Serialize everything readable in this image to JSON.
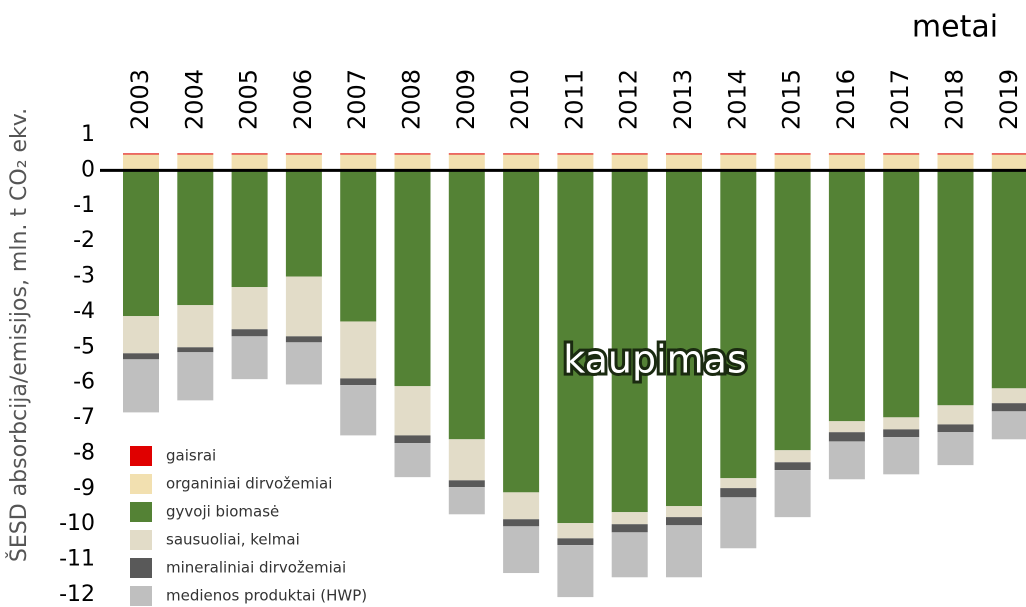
{
  "chart_data": {
    "type": "stacked-bar",
    "title": "metai",
    "y_label": "ŠESD absorbcija/emisijos, mln. t CO₂ ekv.",
    "annotation": "kaupimas",
    "categories": [
      "2003",
      "2004",
      "2005",
      "2006",
      "2007",
      "2008",
      "2009",
      "2010",
      "2011",
      "2012",
      "2013",
      "2014",
      "2015",
      "2016",
      "2017",
      "2018",
      "2019"
    ],
    "series": [
      {
        "name": "gaisrai",
        "color": "#e00000",
        "values": [
          0.03,
          0.03,
          0.03,
          0.03,
          0.03,
          0.03,
          0.03,
          0.03,
          0.03,
          0.03,
          0.03,
          0.03,
          0.03,
          0.03,
          0.03,
          0.03,
          0.03
        ]
      },
      {
        "name": "organiniai dirvožemiai",
        "color": "#f2e0b0",
        "values": [
          0.45,
          0.45,
          0.45,
          0.45,
          0.45,
          0.45,
          0.45,
          0.45,
          0.45,
          0.45,
          0.45,
          0.45,
          0.45,
          0.45,
          0.45,
          0.45,
          0.45
        ]
      },
      {
        "name": "gyvoji biomasė",
        "color": "#548235",
        "values": [
          -4.12,
          -3.81,
          -3.3,
          -3.0,
          -4.27,
          -6.1,
          -7.6,
          -9.1,
          -9.97,
          -9.66,
          -9.49,
          -8.7,
          -7.91,
          -7.09,
          -6.98,
          -6.64,
          -6.16
        ]
      },
      {
        "name": "sausuoliai, kelmai",
        "color": "#e2dcc8",
        "values": [
          -1.05,
          -1.19,
          -1.19,
          -1.69,
          -1.61,
          -1.39,
          -1.16,
          -0.76,
          -0.43,
          -0.34,
          -0.31,
          -0.28,
          -0.34,
          -0.31,
          -0.34,
          -0.54,
          -0.42
        ]
      },
      {
        "name": "mineraliniai dirvožemiai",
        "color": "#595959",
        "values": [
          -0.17,
          -0.14,
          -0.2,
          -0.17,
          -0.19,
          -0.22,
          -0.19,
          -0.2,
          -0.19,
          -0.23,
          -0.23,
          -0.26,
          -0.22,
          -0.26,
          -0.22,
          -0.22,
          -0.23
        ]
      },
      {
        "name": "medienos produktai (HWP)",
        "color": "#bfbfbf",
        "values": [
          -1.5,
          -1.36,
          -1.21,
          -1.19,
          -1.42,
          -0.96,
          -0.77,
          -1.32,
          -1.47,
          -1.27,
          -1.47,
          -1.44,
          -1.33,
          -1.07,
          -1.05,
          -0.93,
          -0.79
        ]
      }
    ],
    "ylim": [
      -12.34,
      1
    ],
    "yticks": [
      1,
      0,
      -1,
      -2,
      -3,
      -4,
      -5,
      -6,
      -7,
      -8,
      -9,
      -10,
      -11,
      -12
    ]
  }
}
